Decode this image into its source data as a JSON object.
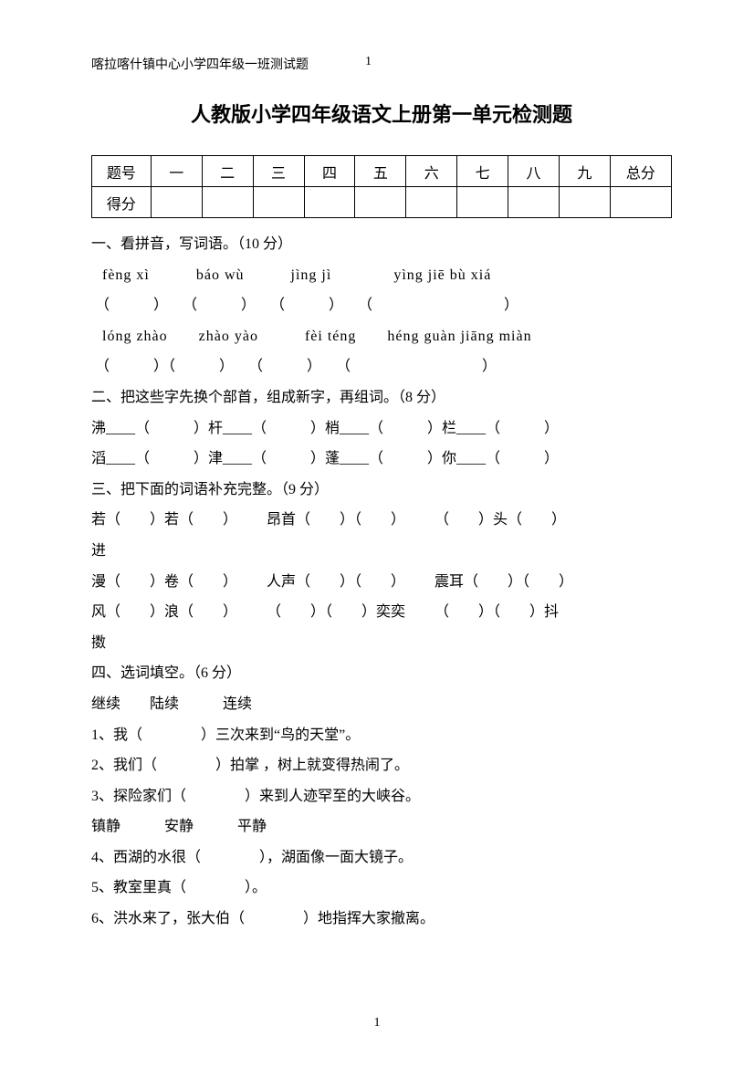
{
  "header": {
    "left": "喀拉喀什镇中心小学四年级一班测试题",
    "page_top": "1"
  },
  "title": "人教版小学四年级语文上册第一单元检测题",
  "score_table": {
    "row1": [
      "题号",
      "一",
      "二",
      "三",
      "四",
      "五",
      "六",
      "七",
      "八",
      "九",
      "总分"
    ],
    "row2_label": "得分"
  },
  "sections": {
    "s1_heading": "一、看拼音，写词语。（10 分）",
    "s1_pinyin1": "fèng xì   báo wù   jìng jì    yìng jiē bù xiá",
    "s1_paren1": "（   ） （   ） （   ） （         ）",
    "s1_pinyin2": "lóng zhào  zhào yào   fèi téng  héng guàn jiāng miàn",
    "s1_paren2": "（   ）（   ） （   ） （         ）",
    "s2_heading": "二、把这些字先换个部首，组成新字，再组词。（8 分）",
    "s2_line1": "沸____（   ）杆____（   ）梢____（   ）栏____（   ）",
    "s2_line2": "滔____（   ）津____（   ）蓬____（   ）你____（   ）",
    "s3_heading": "三、把下面的词语补充完整。（9 分）",
    "s3_line1": "若（  ）若（  ）  昂首（  ）（  ）  （  ）头（  ）",
    "s3_line1b": "进",
    "s3_line2": "漫（  ）卷（  ）  人声（  ）（  ）  震耳（  ）（  ）",
    "s3_line3": "风（  ）浪（  ）  （  ）（  ）奕奕  （  ）（  ）抖",
    "s3_line3b": "擞",
    "s4_heading": "四、选词填空。（6 分）",
    "s4_words1": "继续  陆续   连续",
    "s4_q1": "1、我（    ）三次来到“鸟的天堂”。",
    "s4_q2": "2、我们（    ）拍掌 ，树上就变得热闹了。",
    "s4_q3": "3、探险家们（    ）来到人迹罕至的大峡谷。",
    "s4_words2": "镇静   安静   平静",
    "s4_q4": "4、西湖的水很（    ），湖面像一面大镜子。",
    "s4_q5": "5、教室里真（    ）。",
    "s4_q6": "6、洪水来了，张大伯（    ）地指挥大家撤离。"
  },
  "footer": {
    "page": "1"
  }
}
